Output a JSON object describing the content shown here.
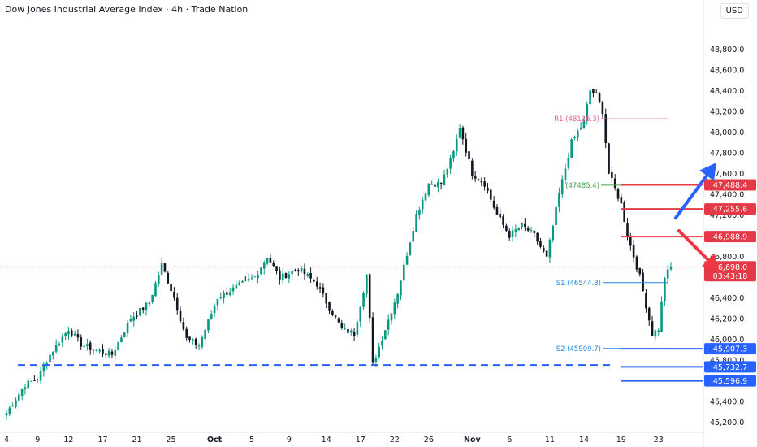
{
  "header": {
    "title": "Dow Jones Industrial Average Index · 4h · Trade Nation",
    "currency": "USD"
  },
  "colors": {
    "up": "#089981",
    "down": "#131722",
    "red_level": "#e53945",
    "blue_level": "#2962ff",
    "pivot_r": "#f06292",
    "pivot_p": "#43a047",
    "pivot_s": "#1e88e5",
    "arrow_blue": "#2962ff",
    "arrow_red": "#f23645"
  },
  "chart_data": {
    "type": "candlestick",
    "ylim": [
      45100,
      49100
    ],
    "y_ticks": [
      {
        "v": 45200,
        "label": "45,200.0"
      },
      {
        "v": 45400,
        "label": "45,400.0"
      },
      {
        "v": 45600,
        "label": "45,600.0"
      },
      {
        "v": 45800,
        "label": "45,800.0"
      },
      {
        "v": 46000,
        "label": "46,000.0"
      },
      {
        "v": 46200,
        "label": "46,200.0"
      },
      {
        "v": 46400,
        "label": "46,400.0"
      },
      {
        "v": 46600,
        "label": "46,600.0"
      },
      {
        "v": 46800,
        "label": "46,800.0"
      },
      {
        "v": 47000,
        "label": "47,000.0"
      },
      {
        "v": 47200,
        "label": "47,200.0"
      },
      {
        "v": 47400,
        "label": "47,400.0"
      },
      {
        "v": 47600,
        "label": "47,600.0"
      },
      {
        "v": 47800,
        "label": "47,800.0"
      },
      {
        "v": 48000,
        "label": "48,000.0"
      },
      {
        "v": 48200,
        "label": "48,200.0"
      },
      {
        "v": 48400,
        "label": "48,400.0"
      },
      {
        "v": 48600,
        "label": "48,600.0"
      },
      {
        "v": 48800,
        "label": "48,800.0"
      }
    ],
    "x_ticks": [
      {
        "i": 0,
        "label": "4"
      },
      {
        "i": 10,
        "label": "9"
      },
      {
        "i": 20,
        "label": "12"
      },
      {
        "i": 31,
        "label": "17"
      },
      {
        "i": 42,
        "label": "21"
      },
      {
        "i": 53,
        "label": "25"
      },
      {
        "i": 67,
        "label": "Oct"
      },
      {
        "i": 79,
        "label": "5"
      },
      {
        "i": 91,
        "label": "9"
      },
      {
        "i": 103,
        "label": "14"
      },
      {
        "i": 114,
        "label": "17"
      },
      {
        "i": 125,
        "label": "22"
      },
      {
        "i": 136,
        "label": "26"
      },
      {
        "i": 150,
        "label": "Nov"
      },
      {
        "i": 162,
        "label": "6"
      },
      {
        "i": 175,
        "label": "11"
      },
      {
        "i": 186,
        "label": "14"
      },
      {
        "i": 198,
        "label": "19"
      },
      {
        "i": 210,
        "label": "23"
      }
    ],
    "waypoints": [
      [
        0,
        45290
      ],
      [
        6,
        45560
      ],
      [
        10,
        45620
      ],
      [
        14,
        45850
      ],
      [
        20,
        46100
      ],
      [
        24,
        45950
      ],
      [
        28,
        45900
      ],
      [
        34,
        45850
      ],
      [
        40,
        46200
      ],
      [
        46,
        46350
      ],
      [
        50,
        46720
      ],
      [
        54,
        46400
      ],
      [
        58,
        46000
      ],
      [
        62,
        45940
      ],
      [
        68,
        46400
      ],
      [
        74,
        46500
      ],
      [
        80,
        46600
      ],
      [
        84,
        46800
      ],
      [
        88,
        46590
      ],
      [
        94,
        46680
      ],
      [
        100,
        46530
      ],
      [
        104,
        46300
      ],
      [
        108,
        46100
      ],
      [
        112,
        46050
      ],
      [
        116,
        46620
      ],
      [
        118,
        45750
      ],
      [
        122,
        46100
      ],
      [
        126,
        46450
      ],
      [
        128,
        46700
      ],
      [
        132,
        47200
      ],
      [
        136,
        47500
      ],
      [
        140,
        47500
      ],
      [
        144,
        47800
      ],
      [
        146,
        48050
      ],
      [
        150,
        47600
      ],
      [
        154,
        47500
      ],
      [
        158,
        47200
      ],
      [
        162,
        47000
      ],
      [
        166,
        47100
      ],
      [
        170,
        47000
      ],
      [
        174,
        46780
      ],
      [
        178,
        47400
      ],
      [
        182,
        47900
      ],
      [
        186,
        48100
      ],
      [
        188,
        48400
      ],
      [
        190,
        48350
      ],
      [
        192,
        48200
      ],
      [
        194,
        47600
      ],
      [
        198,
        47300
      ],
      [
        200,
        47000
      ],
      [
        204,
        46600
      ],
      [
        208,
        46050
      ],
      [
        210,
        46100
      ],
      [
        212,
        46600
      ],
      [
        214,
        46698
      ]
    ],
    "levels": [
      {
        "value": 47488.4,
        "label": "47,488.4",
        "color": "red"
      },
      {
        "value": 47255.6,
        "label": "47,255.6",
        "color": "red"
      },
      {
        "value": 46988.9,
        "label": "46,988.9",
        "color": "red"
      },
      {
        "value": 45907.3,
        "label": "45,907.3",
        "color": "blue"
      },
      {
        "value": 45732.7,
        "label": "45,732.7",
        "color": "blue"
      },
      {
        "value": 45596.9,
        "label": "45,596.9",
        "color": "blue"
      }
    ],
    "pivots": [
      {
        "name": "R1",
        "label": "R1 (48126.3)",
        "value": 48126.3,
        "color": "pivot_r"
      },
      {
        "name": "P",
        "label": "(47485.4)",
        "value": 47485.4,
        "color": "pivot_p"
      },
      {
        "name": "S1",
        "label": "S1 (46544.8)",
        "value": 46544.8,
        "color": "pivot_s"
      },
      {
        "name": "S2",
        "label": "S2 (45909.7)",
        "value": 45909.7,
        "color": "pivot_s"
      }
    ],
    "last_price": {
      "value": 46698.0,
      "label": "46,698.0",
      "countdown": "03:43:18"
    },
    "dashed_support": 45750
  }
}
